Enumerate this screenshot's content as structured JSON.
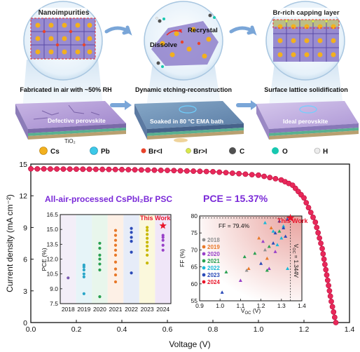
{
  "schematic": {
    "stages": [
      {
        "bubble_label": "Nanoimpurities",
        "process_label": "Fabricated in air with ~50% RH",
        "slab_label": "Defective perovskite",
        "layer_label": "TiO₂"
      },
      {
        "bubble_labels": [
          "Recrystal",
          "Dissolve"
        ],
        "process_label": "Dynamic etching-reconstruction",
        "slab_label": "Soaked in 80 °C EMA bath"
      },
      {
        "bubble_label": "Br-rich capping layer",
        "process_label": "Surface lattice solidification",
        "slab_label": "Ideal perovskite"
      }
    ],
    "legend": [
      {
        "label": "Cs",
        "color": "#f2b01e",
        "shape": "sphere"
      },
      {
        "label": "Pb",
        "color": "#3cc8e8",
        "shape": "sphere"
      },
      {
        "label": "Br<I",
        "color": "#e8442c",
        "shape": "small-sphere"
      },
      {
        "label": "Br>I",
        "color": "#d8e84c",
        "shape": "small-sphere"
      },
      {
        "label": "C",
        "color": "#505050",
        "shape": "sphere"
      },
      {
        "label": "O",
        "color": "#18c8b0",
        "shape": "sphere"
      },
      {
        "label": "H",
        "color": "#ececec",
        "shape": "small-sphere"
      }
    ]
  },
  "chart_data": [
    {
      "type": "line",
      "title": "All-air-processed CsPbI₂Br PSC",
      "annotation": "PCE = 15.37%",
      "xlabel": "Voltage (V)",
      "ylabel": "Current density (mA cm⁻²)",
      "xlim": [
        0.0,
        1.4
      ],
      "ylim": [
        0,
        15
      ],
      "xticks": [
        "0.0",
        "0.2",
        "0.4",
        "0.6",
        "0.8",
        "1.0",
        "1.2",
        "1.4"
      ],
      "yticks": [
        "0",
        "3",
        "6",
        "9",
        "12",
        "15"
      ],
      "series": [
        {
          "color": "#e8285a",
          "x": [
            0.0,
            0.2,
            0.4,
            0.6,
            0.8,
            1.0,
            1.1,
            1.15,
            1.2,
            1.25,
            1.28,
            1.3,
            1.32,
            1.34
          ],
          "y": [
            14.55,
            14.52,
            14.48,
            14.4,
            14.28,
            13.95,
            13.5,
            13.0,
            11.8,
            9.5,
            7.0,
            4.5,
            2.0,
            0.0
          ]
        }
      ]
    },
    {
      "type": "scatter",
      "xlabel": "",
      "ylabel": "PCE (%)",
      "ylim": [
        7.5,
        16.5
      ],
      "yticks": [
        "7.5",
        "9.0",
        "10.5",
        "12.0",
        "13.5",
        "15.0",
        "16.5"
      ],
      "categories": [
        "2018",
        "2019",
        "2020",
        "2021",
        "2022",
        "2023",
        "2024"
      ],
      "band_colors": [
        "#f3eef8",
        "#e6f4f8",
        "#e8f6ec",
        "#fdf0e6",
        "#e6ecf8",
        "#fbf8dc",
        "#f0e6f8"
      ],
      "point_colors": [
        "#7a5ab0",
        "#2aa6c8",
        "#28a050",
        "#e87828",
        "#2a4ab8",
        "#c8b800",
        "#9840c8"
      ],
      "values": [
        [
          10.1
        ],
        [
          8.5,
          10.2,
          10.5,
          10.9,
          11.2,
          11.4
        ],
        [
          8.2,
          10.9,
          11.5,
          12.0,
          12.4,
          13.1,
          13.6
        ],
        [
          9.7,
          10.4,
          11.0,
          11.7,
          12.4,
          12.9,
          13.4,
          13.9,
          14.4,
          14.9
        ],
        [
          10.6,
          12.7,
          13.8,
          14.2,
          14.7,
          15.1
        ],
        [
          11.6,
          12.4,
          12.9,
          13.3,
          13.7,
          14.1,
          14.5,
          14.9,
          15.2
        ],
        [
          12.9,
          13.4,
          13.9,
          14.2,
          14.4
        ]
      ],
      "highlight": {
        "label": "This Work",
        "category": "2024",
        "value": 15.37,
        "color": "#e8142c"
      }
    },
    {
      "type": "scatter",
      "xlabel": "VOC (V)",
      "ylabel": "FF (%)",
      "xlim": [
        0.9,
        1.4
      ],
      "ylim": [
        55,
        80
      ],
      "xticks": [
        "0.9",
        "1.0",
        "1.1",
        "1.2",
        "1.3",
        "1.4"
      ],
      "yticks": [
        "55",
        "60",
        "65",
        "70",
        "75",
        "80"
      ],
      "legend": [
        "2018",
        "2019",
        "2020",
        "2021",
        "2022",
        "2023",
        "2024"
      ],
      "legend_colors": [
        "#909090",
        "#e87828",
        "#9840c8",
        "#28a050",
        "#18b8d8",
        "#2a4ab8",
        "#e81428"
      ],
      "points": [
        {
          "year": "2018",
          "x": 1.13,
          "y": 64.0
        },
        {
          "year": "2018",
          "x": 1.22,
          "y": 70.0
        },
        {
          "year": "2019",
          "x": 1.19,
          "y": 73.5
        },
        {
          "year": "2019",
          "x": 1.25,
          "y": 76.5
        },
        {
          "year": "2019",
          "x": 1.23,
          "y": 67.5
        },
        {
          "year": "2019",
          "x": 1.14,
          "y": 64.5
        },
        {
          "year": "2020",
          "x": 1.1,
          "y": 61.0
        },
        {
          "year": "2020",
          "x": 1.21,
          "y": 72.5
        },
        {
          "year": "2020",
          "x": 1.27,
          "y": 69.5
        },
        {
          "year": "2020",
          "x": 1.24,
          "y": 64.5
        },
        {
          "year": "2021",
          "x": 1.03,
          "y": 63.5
        },
        {
          "year": "2021",
          "x": 1.12,
          "y": 68.0
        },
        {
          "year": "2021",
          "x": 1.17,
          "y": 69.0
        },
        {
          "year": "2021",
          "x": 1.24,
          "y": 71.0
        },
        {
          "year": "2021",
          "x": 1.29,
          "y": 75.5
        },
        {
          "year": "2021",
          "x": 1.23,
          "y": 64.0
        },
        {
          "year": "2022",
          "x": 1.28,
          "y": 71.5
        },
        {
          "year": "2022",
          "x": 1.31,
          "y": 77.0
        },
        {
          "year": "2022",
          "x": 1.33,
          "y": 64.5
        },
        {
          "year": "2022",
          "x": 1.3,
          "y": 73.5
        },
        {
          "year": "2022",
          "x": 1.26,
          "y": 75.5
        },
        {
          "year": "2022",
          "x": 1.22,
          "y": 78.0
        },
        {
          "year": "2023",
          "x": 1.27,
          "y": 75.0
        },
        {
          "year": "2023",
          "x": 1.31,
          "y": 76.5
        },
        {
          "year": "2023",
          "x": 1.29,
          "y": 78.5
        },
        {
          "year": "2023",
          "x": 1.26,
          "y": 72.0
        },
        {
          "year": "2023",
          "x": 1.2,
          "y": 66.0
        },
        {
          "year": "2023",
          "x": 1.32,
          "y": 74.0
        },
        {
          "year": "2023",
          "x": 1.33,
          "y": 79.0
        },
        {
          "year": "2023",
          "x": 1.01,
          "y": 57.5
        }
      ],
      "highlight": {
        "label": "This Work",
        "x": 1.344,
        "y": 79.4,
        "color": "#e8142c"
      },
      "ff_annotation": "FF = 79.4%",
      "voc_annotation": "VOC = 1.344V"
    }
  ]
}
